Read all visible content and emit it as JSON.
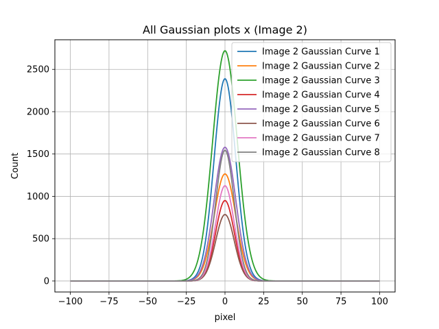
{
  "chart_data": {
    "type": "line",
    "title": "All Gaussian plots x (Image 2)",
    "xlabel": "pixel",
    "ylabel": "Count",
    "xlim": [
      -110,
      110
    ],
    "ylim": [
      -130,
      2850
    ],
    "xticks": [
      -100,
      -75,
      -50,
      -25,
      0,
      25,
      50,
      75,
      100
    ],
    "yticks": [
      0,
      500,
      1000,
      1500,
      2000,
      2500
    ],
    "grid": true,
    "legend_position": "top-right",
    "x_range": [
      -100,
      100
    ],
    "series": [
      {
        "name": "Image 2 Gaussian Curve 1",
        "color": "#1f77b4",
        "amplitude": 2390,
        "center": 0,
        "sigma": 7
      },
      {
        "name": "Image 2 Gaussian Curve 2",
        "color": "#ff7f0e",
        "amplitude": 1265,
        "center": 0,
        "sigma": 7
      },
      {
        "name": "Image 2 Gaussian Curve 3",
        "color": "#2ca02c",
        "amplitude": 2720,
        "center": 0,
        "sigma": 8
      },
      {
        "name": "Image 2 Gaussian Curve 4",
        "color": "#d62728",
        "amplitude": 950,
        "center": 0,
        "sigma": 6
      },
      {
        "name": "Image 2 Gaussian Curve 5",
        "color": "#9467bd",
        "amplitude": 1580,
        "center": 0,
        "sigma": 7
      },
      {
        "name": "Image 2 Gaussian Curve 6",
        "color": "#8c564b",
        "amplitude": 785,
        "center": 0,
        "sigma": 6
      },
      {
        "name": "Image 2 Gaussian Curve 7",
        "color": "#e377c2",
        "amplitude": 1125,
        "center": 0,
        "sigma": 6
      },
      {
        "name": "Image 2 Gaussian Curve 8",
        "color": "#7f7f7f",
        "amplitude": 1545,
        "center": 0,
        "sigma": 6
      }
    ]
  }
}
